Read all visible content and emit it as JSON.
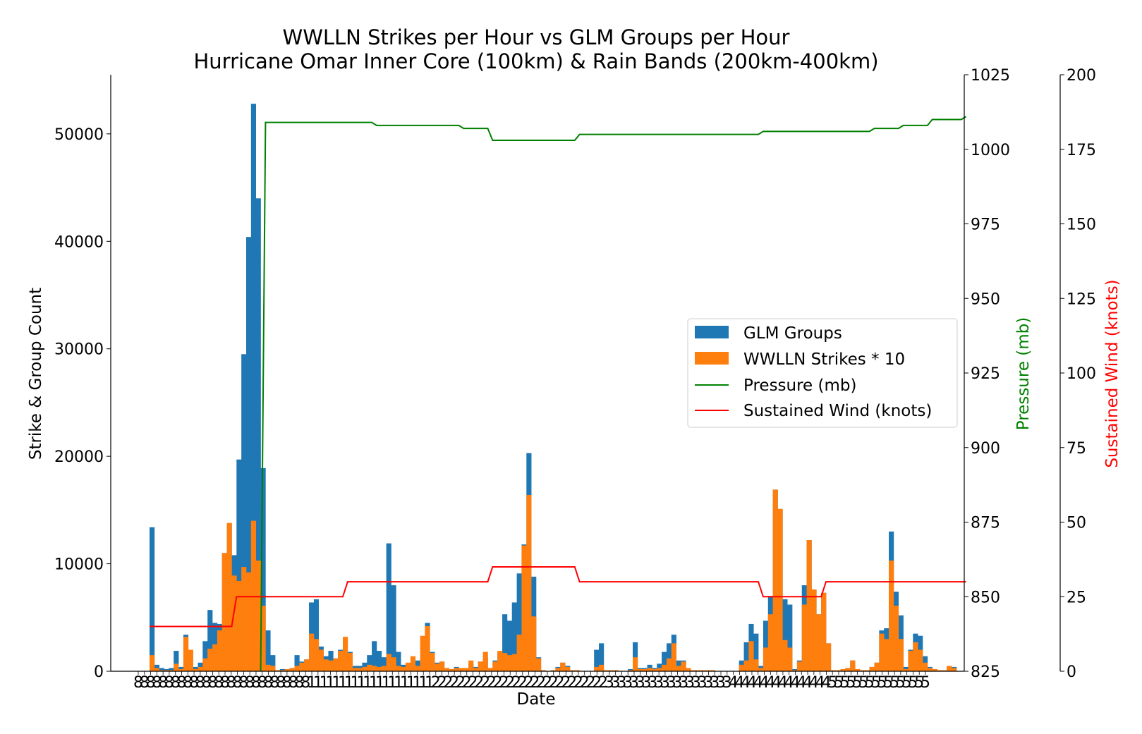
{
  "chart_data": {
    "type": "bar",
    "title": "WWLLN Strikes per Hour vs GLM Groups per Hour",
    "subtitle": "Hurricane Omar Inner Core (100km) & Rain Bands (200km-400km)",
    "xlabel": "Date",
    "ylabel": "Strike & Group Count",
    "ylabel_pressure": "Pressure (mb)",
    "ylabel_wind": "Sustained Wind (knots)",
    "ylim": [
      0,
      55500
    ],
    "pressure_lim": [
      825,
      1025
    ],
    "wind_lim": [
      0,
      200
    ],
    "yticks": [
      "0",
      "10000",
      "20000",
      "30000",
      "40000",
      "50000"
    ],
    "pressure_ticks": [
      "825",
      "850",
      "875",
      "900",
      "925",
      "950",
      "975",
      "1000",
      "1025"
    ],
    "wind_ticks": [
      "0",
      "25",
      "50",
      "75",
      "100",
      "125",
      "150",
      "175",
      "200"
    ],
    "xtick_labels": [
      "8",
      "8",
      "8",
      "8",
      "8",
      "8",
      "8",
      "8",
      "8",
      "8",
      "8",
      "8",
      "8",
      "8",
      "8",
      "8",
      "8",
      "8",
      "8",
      "8",
      "8",
      "8",
      "8",
      "8",
      "8",
      "8",
      "8",
      "8",
      "1",
      "1",
      "1",
      "1",
      "1",
      "1",
      "1",
      "1",
      "1",
      "1",
      "1",
      "1",
      "1",
      "1",
      "1",
      "1",
      "1",
      "1",
      "1",
      "1",
      "2",
      "2",
      "2",
      "2",
      "2",
      "2",
      "2",
      "2",
      "2",
      "2",
      "2",
      "2",
      "2",
      "2",
      "2",
      "2",
      "2",
      "2",
      "2",
      "2",
      "2",
      "2",
      "2",
      "2",
      "2",
      "2",
      "2",
      "2",
      "3",
      "3",
      "3",
      "3",
      "3",
      "3",
      "3",
      "3",
      "3",
      "3",
      "3",
      "3",
      "3",
      "3",
      "3",
      "3",
      "3",
      "3",
      "3",
      "3",
      "4",
      "4",
      "4",
      "4",
      "4",
      "4",
      "4",
      "4",
      "4",
      "4",
      "4",
      "4",
      "4",
      "4",
      "4",
      "4",
      "5",
      "5",
      "5",
      "5",
      "5",
      "5",
      "5",
      "5",
      "5",
      "5",
      "5",
      "5",
      "5",
      "5",
      "5",
      "5"
    ],
    "legend_position": "right",
    "grid": false,
    "series": [
      {
        "name": "GLM Groups",
        "color": "#1f77b4",
        "axis": "left",
        "values": [
          13400,
          600,
          300,
          200,
          300,
          1900,
          400,
          3400,
          300,
          400,
          800,
          2800,
          5700,
          4500,
          4400,
          11000,
          13700,
          10800,
          19700,
          29500,
          40400,
          52800,
          44000,
          18900,
          3800,
          1500,
          100,
          200,
          200,
          300,
          1500,
          900,
          1100,
          6400,
          6700,
          2300,
          1400,
          1900,
          1200,
          2000,
          2800,
          1800,
          500,
          500,
          800,
          1500,
          2800,
          1900,
          1300,
          11900,
          8000,
          1800,
          600,
          500,
          600,
          1000,
          800,
          4500,
          1800,
          800,
          900,
          300,
          200,
          400,
          300,
          300,
          700,
          400,
          900,
          1300,
          300,
          1000,
          1800,
          5300,
          4700,
          6400,
          9100,
          11800,
          20300,
          8800,
          1300,
          100,
          0,
          100,
          400,
          800,
          500,
          100,
          100,
          0,
          0,
          0,
          2000,
          2600,
          100,
          100,
          100,
          0,
          0,
          200,
          2700,
          300,
          300,
          600,
          300,
          700,
          1800,
          2600,
          3400,
          1000,
          1000,
          300,
          100,
          100,
          100,
          100,
          100,
          0,
          0,
          0,
          0,
          0,
          1000,
          2700,
          4400,
          3500,
          500,
          4700,
          7000,
          16900,
          15100,
          6700,
          6200,
          200,
          1000,
          8000,
          12200,
          7600,
          5300,
          7300,
          2600,
          100,
          100,
          200,
          300,
          1000,
          200,
          100,
          100,
          400,
          800,
          3800,
          4000,
          13000,
          7400,
          5200,
          400,
          2000,
          3500,
          3300,
          1400,
          400,
          200,
          100,
          100,
          400,
          400
        ],
        "overlay_values": [
          1500,
          300,
          100,
          100,
          100,
          700,
          200,
          3200,
          2000,
          200,
          400,
          1200,
          2100,
          2500,
          3800,
          11000,
          13800,
          8900,
          8400,
          9700,
          9200,
          14000,
          10300,
          6100,
          600,
          500,
          100,
          100,
          200,
          300,
          500,
          800,
          1100,
          3500,
          3000,
          2000,
          1100,
          1000,
          1200,
          1900,
          3200,
          1700,
          300,
          300,
          400,
          600,
          500,
          400,
          500,
          1600,
          1300,
          500,
          400,
          800,
          1400,
          500,
          3300,
          4200,
          1700,
          700,
          900,
          300,
          200,
          300,
          300,
          300,
          1000,
          300,
          900,
          1800,
          300,
          900,
          1900,
          1700,
          1500,
          1600,
          3400,
          11700,
          16400,
          5100,
          1200,
          100,
          0,
          100,
          300,
          800,
          400,
          100,
          100,
          0,
          0,
          0,
          400,
          600,
          100,
          100,
          100,
          0,
          0,
          100,
          1300,
          200,
          200,
          300,
          200,
          300,
          600,
          1200,
          2600,
          500,
          900,
          300,
          100,
          100,
          100,
          100,
          100,
          0,
          0,
          0,
          0,
          0,
          600,
          1000,
          2800,
          1100,
          300,
          2200,
          5300,
          16900,
          15100,
          2900,
          2200,
          100,
          900,
          6200,
          12200,
          7600,
          5300,
          7300,
          2600,
          100,
          100,
          200,
          300,
          1000,
          200,
          100,
          100,
          400,
          800,
          3500,
          3000,
          10300,
          6100,
          3000,
          200,
          1900,
          2700,
          2000,
          800,
          300,
          200,
          100,
          100,
          500,
          300
        ]
      },
      {
        "name": "WWLLN Strikes * 10",
        "color": "#ff7f0e",
        "axis": "left"
      },
      {
        "name": "Pressure (mb)",
        "color": "#008000",
        "axis": "pressure",
        "points": [
          [
            23,
            825
          ],
          [
            24,
            1009
          ],
          [
            46,
            1009
          ],
          [
            47,
            1008
          ],
          [
            64,
            1008
          ],
          [
            65,
            1007
          ],
          [
            70,
            1007
          ],
          [
            71,
            1003
          ],
          [
            88,
            1003
          ],
          [
            89,
            1005
          ],
          [
            126,
            1005
          ],
          [
            127,
            1006
          ],
          [
            149,
            1006
          ],
          [
            150,
            1007
          ],
          [
            155,
            1007
          ],
          [
            156,
            1008
          ],
          [
            161,
            1008
          ],
          [
            162,
            1010
          ],
          [
            168,
            1010
          ],
          [
            169,
            1011
          ]
        ]
      },
      {
        "name": "Sustained Wind (knots)",
        "color": "#ff0000",
        "axis": "wind",
        "points": [
          [
            0,
            15
          ],
          [
            17,
            15
          ],
          [
            18,
            25
          ],
          [
            40,
            25
          ],
          [
            41,
            30
          ],
          [
            70,
            30
          ],
          [
            71,
            35
          ],
          [
            88,
            35
          ],
          [
            89,
            30
          ],
          [
            126,
            30
          ],
          [
            127,
            25
          ],
          [
            139,
            25
          ],
          [
            140,
            30
          ],
          [
            169,
            30
          ]
        ]
      }
    ]
  }
}
